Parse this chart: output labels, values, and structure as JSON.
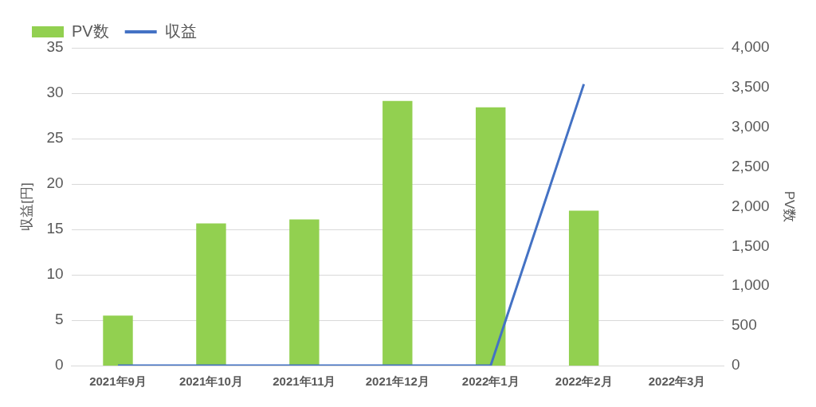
{
  "chart_data": {
    "type": "bar",
    "categories": [
      "2021年9月",
      "2021年10月",
      "2021年11月",
      "2021年12月",
      "2022年1月",
      "2022年2月",
      "2022年3月"
    ],
    "series": [
      {
        "name": "PV数",
        "axis": "y2",
        "color": "#92d050",
        "values": [
          630,
          1790,
          1840,
          3330,
          3250,
          1950,
          null
        ]
      },
      {
        "name": "収益",
        "type": "line",
        "axis": "y",
        "color": "#4472c4",
        "marker": "none",
        "values": [
          0,
          0,
          0,
          0,
          0,
          31,
          null
        ]
      }
    ],
    "ylabel": "収益[円]",
    "y2label": "PV数",
    "ylim": [
      0,
      35
    ],
    "yticks": [
      0,
      5,
      10,
      15,
      20,
      25,
      30,
      35
    ],
    "y2lim": [
      0,
      4000
    ],
    "y2ticks": [
      0,
      500,
      {
        "value": 1000,
        "label": "1,000"
      },
      {
        "value": 1500,
        "label": "1,500"
      },
      {
        "value": 2000,
        "label": "2,000"
      },
      {
        "value": 2500,
        "label": "2,500"
      },
      {
        "value": 3000,
        "label": "3,000"
      },
      {
        "value": 3500,
        "label": "3,500"
      },
      {
        "value": 4000,
        "label": "4,000"
      }
    ],
    "grid": "y",
    "legend": "top left"
  }
}
